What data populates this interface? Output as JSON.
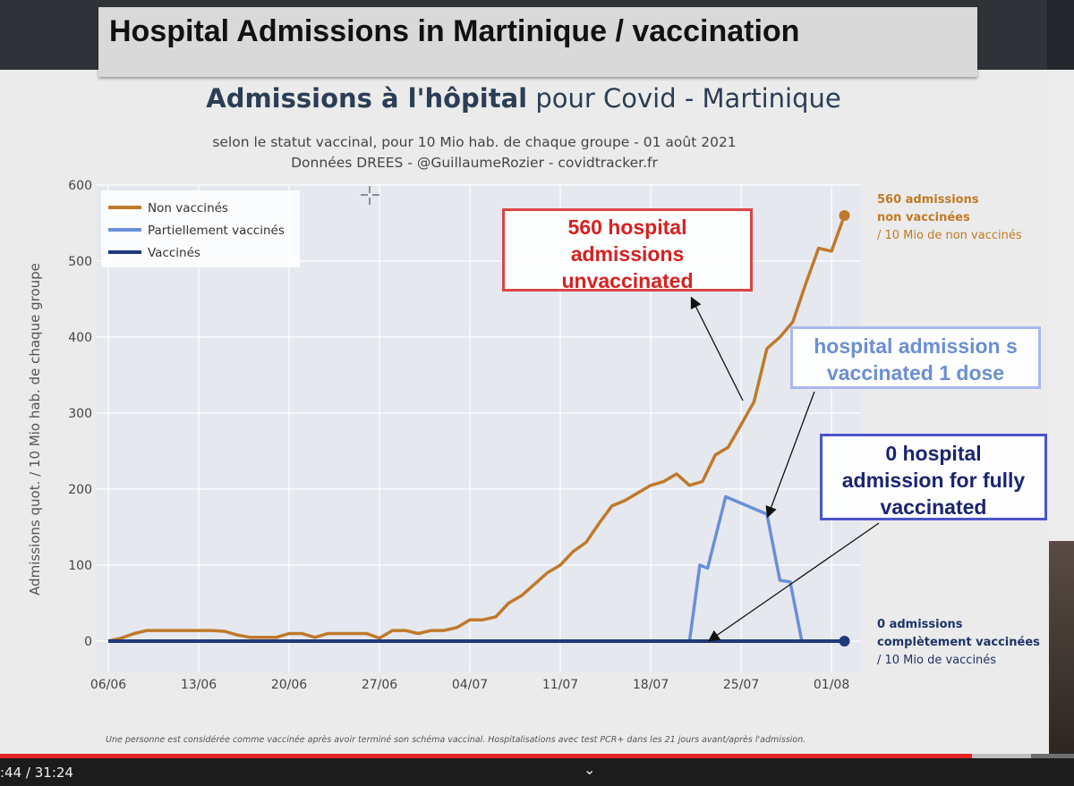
{
  "slide": {
    "title": "Hospital Admissions in Martinique  / vaccination"
  },
  "chart_header": {
    "title_bold": "Admissions à l'hôpital",
    "title_rest": " pour Covid - Martinique",
    "subtitle_line1": "selon le statut vaccinal, pour 10 Mio hab. de chaque groupe - 01 août 2021",
    "subtitle_line2": "Données DREES - @GuillaumeRozier - covidtracker.fr"
  },
  "side_notes": {
    "unvacc_line1": "560 admissions",
    "unvacc_line2": "non vaccinées",
    "unvacc_line3": "/ 10 Mio de non vaccinés",
    "vacc_line1": "0 admissions",
    "vacc_line2": "complètement vaccinées",
    "vacc_line3": "/ 10 Mio de vaccinés"
  },
  "callouts": {
    "red_line1": "560 hospital",
    "red_line2": "admissions",
    "red_line3": "unvaccinated",
    "lblue_line1": "hospital admission s",
    "lblue_line2": "vaccinated 1 dose",
    "blue_line1": "0 hospital",
    "blue_line2": "admission for fully",
    "blue_line3": "vaccinated"
  },
  "footnote": "Une personne est considérée comme vaccinée après avoir terminé son schéma vaccinal. Hospitalisations avec test PCR+ dans les 21 jours avant/après l'admission.",
  "player": {
    "time": ":44 / 31:24",
    "progress": 0.905,
    "buffered": 0.96,
    "chevron": "⌄"
  },
  "colors": {
    "non_vaccines": "#c0792a",
    "partiellement": "#6a8fd8",
    "vaccines": "#1f3a7a",
    "plot_bg": "#e5e8ef"
  },
  "chart_data": {
    "type": "line",
    "ylabel": "Admissions quot. / 10 Mio hab. de chaque groupe",
    "xlabel": "",
    "ylim": [
      0,
      600
    ],
    "yticks": [
      0,
      100,
      200,
      300,
      400,
      500,
      600
    ],
    "x_tick_labels": [
      "06/06",
      "13/06",
      "20/06",
      "27/06",
      "04/07",
      "11/07",
      "18/07",
      "25/07",
      "01/08"
    ],
    "x_tick_days": [
      0,
      7,
      14,
      21,
      28,
      35,
      42,
      49,
      56
    ],
    "x_range_days": [
      0,
      56
    ],
    "x_start_date": "06/06",
    "legend": [
      "Non vaccinés",
      "Partiellement vaccinés",
      "Vaccinés"
    ],
    "legend_position": "top-left",
    "grid": true,
    "series": [
      {
        "name": "Non vaccinés",
        "values": [
          [
            0,
            0
          ],
          [
            1,
            4
          ],
          [
            2,
            10
          ],
          [
            3,
            14
          ],
          [
            4,
            14
          ],
          [
            5,
            14
          ],
          [
            6,
            14
          ],
          [
            7,
            14
          ],
          [
            8,
            14
          ],
          [
            9,
            13
          ],
          [
            10,
            8
          ],
          [
            11,
            5
          ],
          [
            12,
            5
          ],
          [
            13,
            5
          ],
          [
            14,
            10
          ],
          [
            15,
            10
          ],
          [
            16,
            5
          ],
          [
            17,
            10
          ],
          [
            18,
            10
          ],
          [
            19,
            10
          ],
          [
            20,
            10
          ],
          [
            21,
            4
          ],
          [
            22,
            14
          ],
          [
            23,
            14
          ],
          [
            24,
            10
          ],
          [
            25,
            14
          ],
          [
            26,
            14
          ],
          [
            27,
            18
          ],
          [
            28,
            28
          ],
          [
            29,
            28
          ],
          [
            30,
            32
          ],
          [
            31,
            50
          ],
          [
            32,
            60
          ],
          [
            33,
            75
          ],
          [
            34,
            90
          ],
          [
            35,
            100
          ],
          [
            36,
            118
          ],
          [
            37,
            130
          ],
          [
            38,
            155
          ],
          [
            39,
            178
          ],
          [
            40,
            185
          ],
          [
            41,
            195
          ],
          [
            42,
            205
          ],
          [
            43,
            210
          ],
          [
            44,
            220
          ],
          [
            45,
            205
          ],
          [
            46,
            210
          ],
          [
            47,
            245
          ],
          [
            48,
            255
          ],
          [
            49,
            285
          ],
          [
            50,
            315
          ],
          [
            51,
            385
          ],
          [
            52,
            400
          ],
          [
            53,
            420
          ],
          [
            54,
            470
          ],
          [
            55,
            517
          ],
          [
            56,
            513
          ],
          [
            57,
            560
          ]
        ]
      },
      {
        "name": "Partiellement vaccinés",
        "values": [
          [
            0,
            0
          ],
          [
            44,
            0
          ],
          [
            45,
            0
          ],
          [
            45.8,
            100
          ],
          [
            46.4,
            96
          ],
          [
            47.8,
            190
          ],
          [
            51,
            167
          ],
          [
            52,
            80
          ],
          [
            52.8,
            78
          ],
          [
            53.7,
            0
          ],
          [
            57,
            0
          ]
        ]
      },
      {
        "name": "Vaccinés",
        "values": [
          [
            0,
            0
          ],
          [
            57,
            0
          ]
        ]
      }
    ],
    "end_markers": [
      {
        "series": "Non vaccinés",
        "x": 57,
        "y": 560
      },
      {
        "series": "Vaccinés",
        "x": 57,
        "y": 0
      }
    ]
  }
}
